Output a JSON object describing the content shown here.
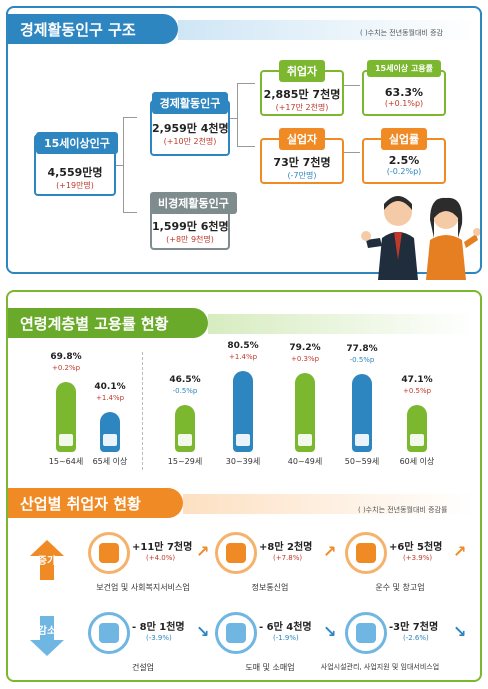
{
  "section1": {
    "title": "경제활동인구 구조",
    "note": "( )수치는 전년동월대비 증감",
    "pop15": {
      "label": "15세이상인구",
      "value": "4,559만명",
      "change": "(+19만명)"
    },
    "active": {
      "label": "경제활동인구",
      "value": "2,959만 4천명",
      "change": "(+10만 2천명)"
    },
    "inactive": {
      "label": "비경제활동인구",
      "value": "1,599만 6천명",
      "change": "(+8만 9천명)"
    },
    "employed": {
      "label": "취업자",
      "value": "2,885만 7천명",
      "change": "(+17만 2천명)"
    },
    "unemployed": {
      "label": "실업자",
      "value": "73만 7천명",
      "change": "(-7만명)"
    },
    "emp_rate": {
      "label": "15세이상 고용률",
      "value": "63.3%",
      "change": "(+0.1%p)"
    },
    "unemp_rate": {
      "label": "실업률",
      "value": "2.5%",
      "change": "(-0.2%p)"
    }
  },
  "section2": {
    "title": "연령계층별 고용률 현황",
    "groups": [
      {
        "label": "15~64세",
        "pct": "69.8%",
        "change": "+0.2%p",
        "dir": "up",
        "color": "green",
        "level": 69.8
      },
      {
        "label": "65세 이상",
        "pct": "40.1%",
        "change": "+1.4%p",
        "dir": "up",
        "color": "blue",
        "level": 40.1
      },
      {
        "label": "15~29세",
        "pct": "46.5%",
        "change": "-0.5%p",
        "dir": "down",
        "color": "green",
        "level": 46.5
      },
      {
        "label": "30~39세",
        "pct": "80.5%",
        "change": "+1.4%p",
        "dir": "up",
        "color": "blue",
        "level": 80.5
      },
      {
        "label": "40~49세",
        "pct": "79.2%",
        "change": "+0.3%p",
        "dir": "up",
        "color": "green",
        "level": 79.2
      },
      {
        "label": "50~59세",
        "pct": "77.8%",
        "change": "-0.5%p",
        "dir": "down",
        "color": "blue",
        "level": 77.8
      },
      {
        "label": "60세 이상",
        "pct": "47.1%",
        "change": "+0.5%p",
        "dir": "up",
        "color": "green",
        "level": 47.1
      }
    ]
  },
  "section3": {
    "title": "산업별 취업자 현황",
    "note": "( )수치는 전년동월대비 증감률",
    "increase_label": "증가",
    "decrease_label": "감소",
    "increase": [
      {
        "value": "+11만 7천명",
        "change": "(+4.0%)",
        "label": "보건업 및 사회복지서비스업",
        "icon": "first-aid-kit-icon"
      },
      {
        "value": "+8만 2천명",
        "change": "(+7.8%)",
        "label": "정보통신업",
        "icon": "smartphone-icon"
      },
      {
        "value": "+6만 5천명",
        "change": "(+3.9%)",
        "label": "운수 및 창고업",
        "icon": "truck-icon"
      }
    ],
    "decrease": [
      {
        "value": "- 8만 1천명",
        "change": "(-3.9%)",
        "label": "건설업",
        "icon": "wrench-icon"
      },
      {
        "value": "- 6만 4천명",
        "change": "(-1.9%)",
        "label": "도매 및 소매업",
        "icon": "shopping-basket-icon"
      },
      {
        "value": "-3만 7천명",
        "change": "(-2.6%)",
        "label": "사업시설관리, 사업지원 및 임대서비스업",
        "icon": "people-gear-icon"
      }
    ]
  },
  "colors": {
    "blue": "#2e86c1",
    "green": "#7cb82f",
    "orange": "#f08a24",
    "red": "#c0392b"
  }
}
